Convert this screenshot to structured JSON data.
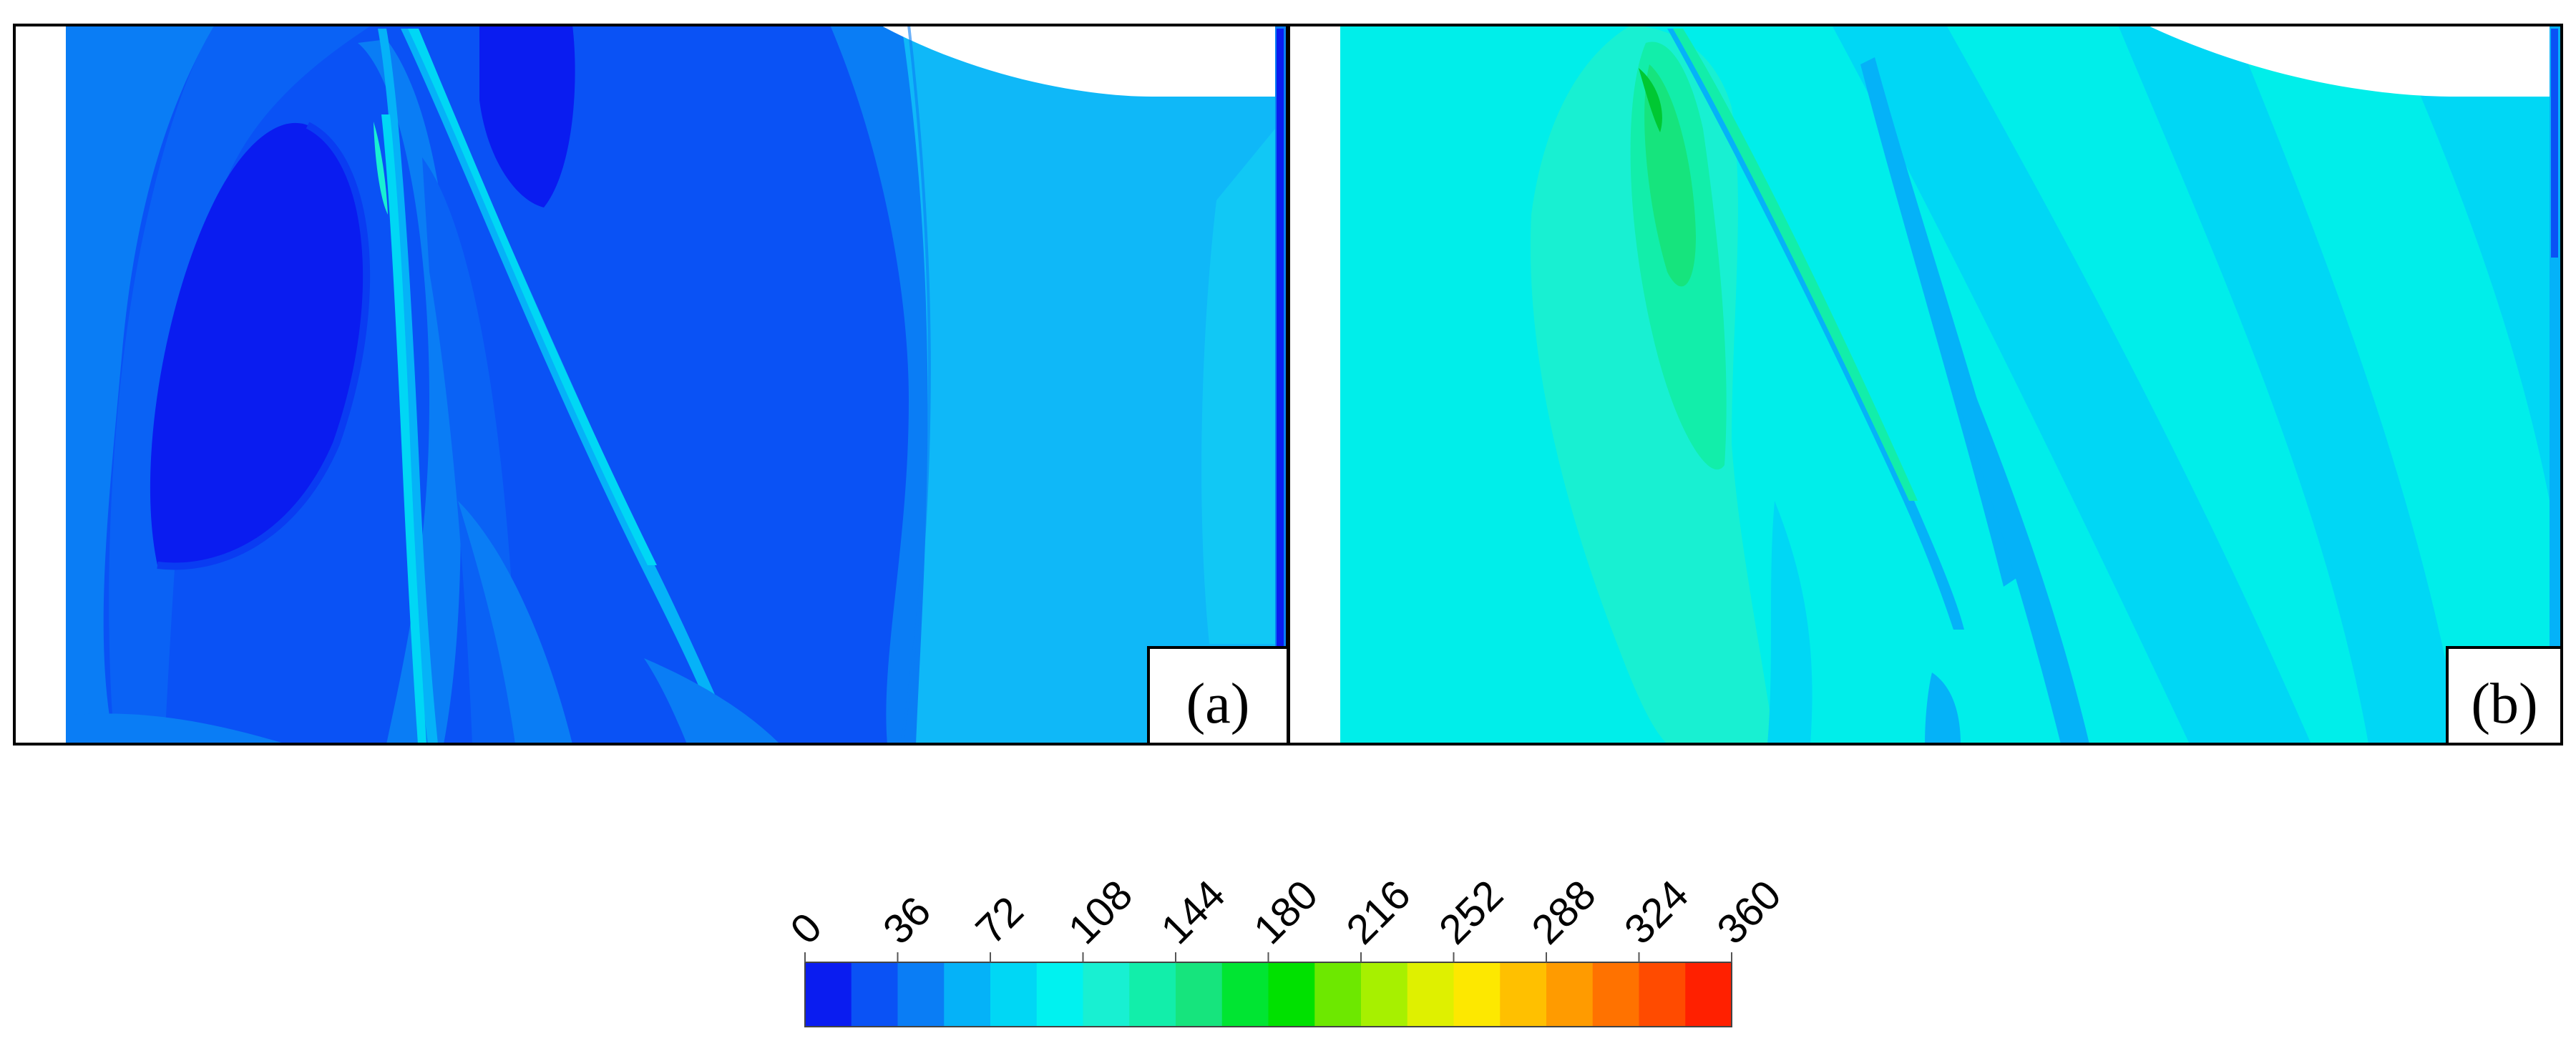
{
  "panels": [
    {
      "label": "(a)"
    },
    {
      "label": "(b)"
    }
  ],
  "colorbar": {
    "tick_labels": [
      "0",
      "36",
      "72",
      "108",
      "144",
      "180",
      "216",
      "252",
      "288",
      "324",
      "360"
    ],
    "range": [
      0,
      360
    ],
    "colors": [
      "#0a1cf0",
      "#0a52f5",
      "#0a7df5",
      "#05b2f8",
      "#00d7f5",
      "#00f2f0",
      "#18f0d2",
      "#12eeaa",
      "#16e47d",
      "#00e532",
      "#00e100",
      "#6de800",
      "#a7f000",
      "#dff000",
      "#fde800",
      "#ffc000",
      "#ff9b00",
      "#ff7200",
      "#ff4b00",
      "#ff2000"
    ]
  },
  "colors": {
    "plot_bg_a": "#0551f5",
    "plot_bg_b": "#00eeea",
    "frame": "#000000"
  }
}
